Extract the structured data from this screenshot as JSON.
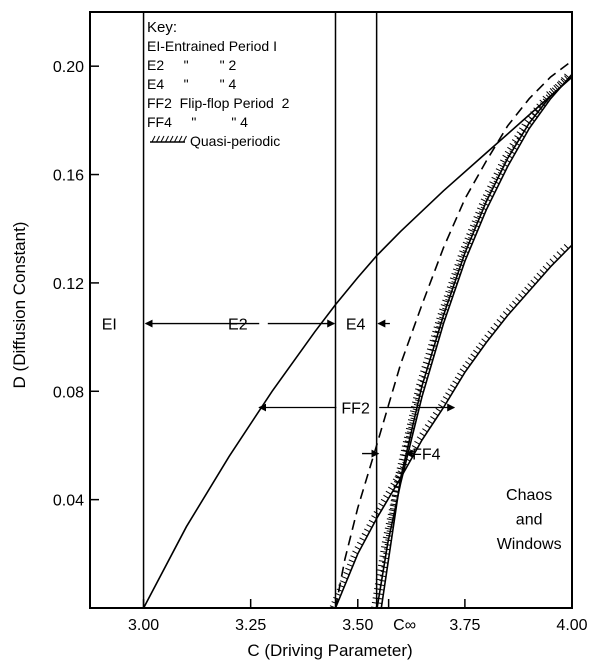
{
  "chart_data": {
    "type": "line",
    "title": "",
    "xlabel": "C (Driving Parameter)",
    "ylabel": "D (Diffusion Constant)",
    "xlim": [
      2.875,
      4.0
    ],
    "ylim": [
      0.0,
      0.22
    ],
    "x_ticks": [
      {
        "value": 3.0,
        "label": "3.00"
      },
      {
        "value": 3.25,
        "label": "3.25"
      },
      {
        "value": 3.5,
        "label": "3.50"
      },
      {
        "value": 3.75,
        "label": "3.75"
      },
      {
        "value": 4.0,
        "label": "4.00"
      }
    ],
    "x_tick_extra": {
      "value": 3.572,
      "label": "C∞"
    },
    "y_ticks": [
      {
        "value": 0.04,
        "label": "0.04"
      },
      {
        "value": 0.08,
        "label": "0.08"
      },
      {
        "value": 0.12,
        "label": "0.12"
      },
      {
        "value": 0.16,
        "label": "0.16"
      },
      {
        "value": 0.2,
        "label": "0.20"
      }
    ],
    "grid": false,
    "key": {
      "title": "Key:",
      "lines": [
        "EI-Entrained Period I",
        "E2     \"        \" 2",
        "E4     \"        \" 4",
        "FF2  Flip-flop Period  2",
        "FF4     \"         \" 4",
        "Quasi-periodic"
      ]
    },
    "vertical_lines": [
      {
        "x": 3.0
      },
      {
        "x": 3.448
      },
      {
        "x": 3.544
      }
    ],
    "series": [
      {
        "style": "solid",
        "x": [
          3.0,
          3.1,
          3.2,
          3.3,
          3.4,
          3.448,
          3.5,
          3.544,
          3.6,
          3.7,
          3.8,
          3.9,
          4.0
        ],
        "y": [
          0.0,
          0.03,
          0.056,
          0.08,
          0.102,
          0.112,
          0.122,
          0.13,
          0.139,
          0.154,
          0.168,
          0.182,
          0.196
        ]
      },
      {
        "style": "dashed",
        "x": [
          3.448,
          3.47,
          3.5,
          3.544,
          3.6,
          3.65,
          3.7,
          3.75,
          3.8,
          3.85,
          3.9,
          3.95,
          4.0
        ],
        "y": [
          0.0,
          0.018,
          0.037,
          0.06,
          0.09,
          0.112,
          0.133,
          0.151,
          0.165,
          0.178,
          0.188,
          0.196,
          0.202
        ]
      },
      {
        "style": "solid",
        "x": [
          3.448,
          3.5,
          3.544,
          3.6,
          3.65,
          3.7,
          3.75,
          3.8,
          3.85,
          3.9,
          3.95,
          4.0
        ],
        "y": [
          0.0,
          0.02,
          0.033,
          0.048,
          0.062,
          0.074,
          0.087,
          0.098,
          0.108,
          0.117,
          0.126,
          0.134
        ]
      },
      {
        "style": "solid",
        "x": [
          3.555,
          3.6,
          3.65,
          3.7,
          3.75,
          3.8,
          3.85,
          3.9,
          3.95,
          4.0
        ],
        "y": [
          0.0,
          0.048,
          0.082,
          0.108,
          0.131,
          0.15,
          0.166,
          0.179,
          0.189,
          0.196
        ]
      },
      {
        "style": "solid",
        "x": [
          3.545,
          3.57,
          3.6,
          3.65,
          3.7,
          3.75,
          3.8,
          3.85,
          3.9,
          3.95,
          4.0
        ],
        "y": [
          0.0,
          0.024,
          0.046,
          0.078,
          0.105,
          0.128,
          0.147,
          0.163,
          0.177,
          0.188,
          0.197
        ]
      }
    ],
    "annotations": [
      {
        "text": "EI",
        "x": 2.92,
        "y": 0.105
      },
      {
        "text": "E2",
        "x": 3.22,
        "y": 0.105
      },
      {
        "text": "E4",
        "x": 3.495,
        "y": 0.105
      },
      {
        "text": "FF2",
        "x": 3.495,
        "y": 0.074
      },
      {
        "text": "FF4",
        "x": 3.66,
        "y": 0.057
      },
      {
        "text": "Chaos",
        "x": 3.9,
        "y": 0.042
      },
      {
        "text": "and",
        "x": 3.9,
        "y": 0.033
      },
      {
        "text": "Windows",
        "x": 3.9,
        "y": 0.024
      }
    ],
    "arrows": [
      {
        "from": [
          3.27,
          0.105
        ],
        "to": [
          3.005,
          0.105
        ]
      },
      {
        "from": [
          3.29,
          0.105
        ],
        "to": [
          3.445,
          0.105
        ]
      },
      {
        "from": [
          3.575,
          0.105
        ],
        "to": [
          3.548,
          0.105
        ]
      },
      {
        "from": [
          3.45,
          0.074
        ],
        "to": [
          3.27,
          0.074
        ]
      },
      {
        "from": [
          3.55,
          0.074
        ],
        "to": [
          3.725,
          0.074
        ]
      },
      {
        "from": [
          3.51,
          0.057
        ],
        "to": [
          3.548,
          0.057
        ]
      },
      {
        "from": [
          3.63,
          0.057
        ],
        "to": [
          3.612,
          0.057
        ]
      }
    ]
  }
}
